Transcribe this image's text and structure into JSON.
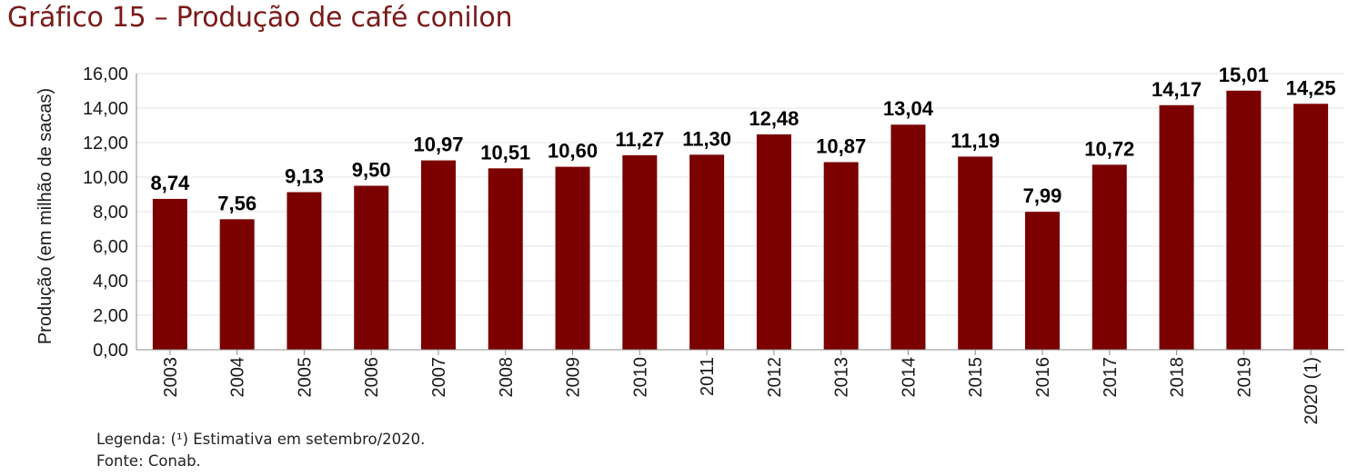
{
  "title": "Gráfico 15 – Produção de café conilon",
  "chart_data": {
    "type": "bar",
    "categories": [
      "2003",
      "2004",
      "2005",
      "2006",
      "2007",
      "2008",
      "2009",
      "2010",
      "2011",
      "2012",
      "2013",
      "2014",
      "2015",
      "2016",
      "2017",
      "2018",
      "2019",
      "2020 (1)"
    ],
    "values": [
      8.74,
      7.56,
      9.13,
      9.5,
      10.97,
      10.51,
      10.6,
      11.27,
      11.3,
      12.48,
      10.87,
      13.04,
      11.19,
      7.99,
      10.72,
      14.17,
      15.01,
      14.25
    ],
    "data_labels": [
      "8,74",
      "7,56",
      "9,13",
      "9,50",
      "10,97",
      "10,51",
      "10,60",
      "11,27",
      "11,30",
      "12,48",
      "10,87",
      "13,04",
      "11,19",
      "7,99",
      "10,72",
      "14,17",
      "15,01",
      "14,25"
    ],
    "ylabel": "Produção (em milhão de sacas)",
    "xlabel": "",
    "ylim": [
      0,
      16
    ],
    "yticks": [
      0,
      2,
      4,
      6,
      8,
      10,
      12,
      14,
      16
    ],
    "ytick_labels": [
      "0,00",
      "2,00",
      "4,00",
      "6,00",
      "8,00",
      "10,00",
      "12,00",
      "14,00",
      "16,00"
    ],
    "grid": true,
    "bar_color": "#7b0000",
    "grid_color": "#e6e6e6",
    "axis_color": "#8c8c8c"
  },
  "legend_note": "Legenda: (¹) Estimativa em setembro/2020.",
  "source": "Fonte: Conab."
}
